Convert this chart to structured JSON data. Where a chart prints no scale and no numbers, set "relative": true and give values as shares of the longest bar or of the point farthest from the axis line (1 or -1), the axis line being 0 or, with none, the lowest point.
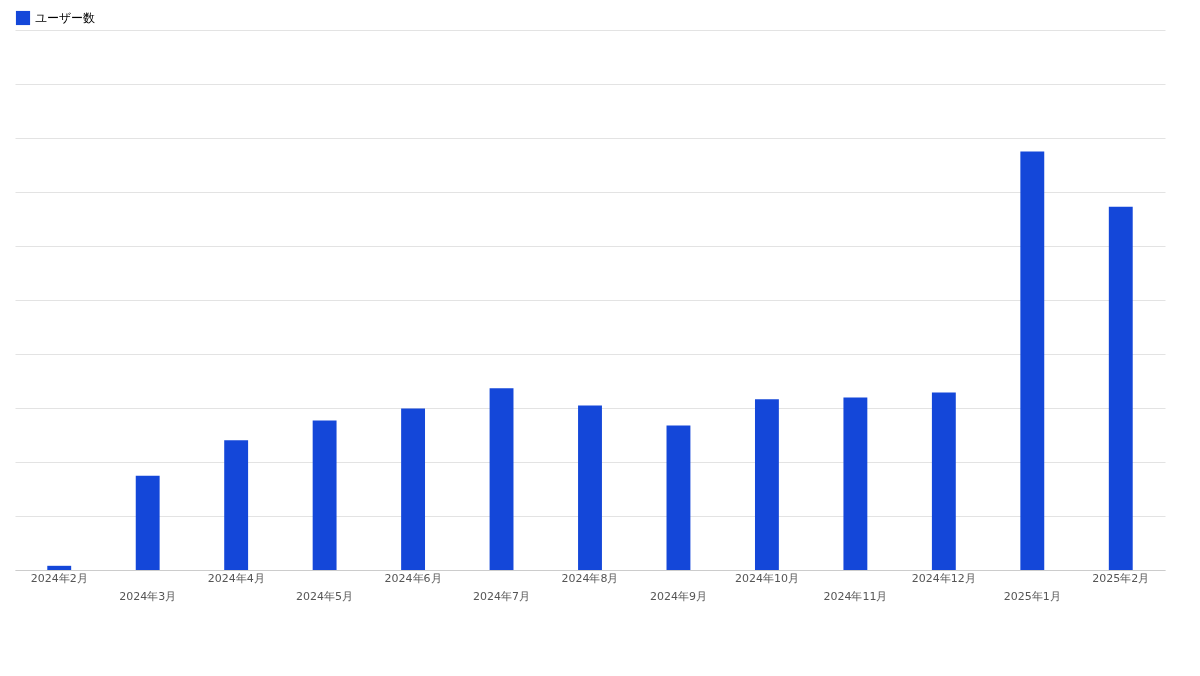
{
  "chart_data": {
    "type": "bar",
    "relative": true,
    "grid": "y",
    "legend": "top left",
    "categories": [
      "2024年2月",
      "2024年3月",
      "2024年4月",
      "2024年5月",
      "2024年6月",
      "2024年7月",
      "2024年8月",
      "2024年9月",
      "2024年10月",
      "2024年11月",
      "2024年12月",
      "2025年1月",
      "2025年2月"
    ],
    "series": [
      {
        "name": "ユーザー数",
        "color": "#1447d9",
        "values": [
          0.01,
          0.225,
          0.31,
          0.357,
          0.386,
          0.434,
          0.393,
          0.345,
          0.408,
          0.412,
          0.424,
          1,
          0.868
        ]
      }
    ]
  }
}
